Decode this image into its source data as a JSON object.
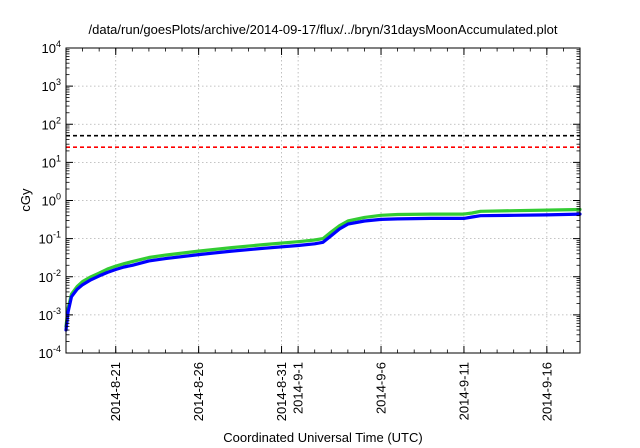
{
  "chart_data": {
    "type": "line",
    "title": "/data/run/goesPlots/archive/2014-09-17/flux/../bryn/31daysMoonAccumulated.plot",
    "xlabel": "Coordinated Universal Time (UTC)",
    "ylabel": "cGy",
    "y_scale": "log",
    "ylim": [
      0.0001,
      10000
    ],
    "xlim": [
      "2014-08-18",
      "2014-09-18"
    ],
    "grid": true,
    "y_ticks": [
      {
        "value": 0.0001,
        "base": "10",
        "exp": "-4"
      },
      {
        "value": 0.001,
        "base": "10",
        "exp": "-3"
      },
      {
        "value": 0.01,
        "base": "10",
        "exp": "-2"
      },
      {
        "value": 0.1,
        "base": "10",
        "exp": "-1"
      },
      {
        "value": 1,
        "base": "10",
        "exp": "0"
      },
      {
        "value": 10,
        "base": "10",
        "exp": "1"
      },
      {
        "value": 100,
        "base": "10",
        "exp": "2"
      },
      {
        "value": 1000,
        "base": "10",
        "exp": "3"
      },
      {
        "value": 10000,
        "base": "10",
        "exp": "4"
      }
    ],
    "x_ticks": [
      {
        "date": "2014-08-21",
        "lines": [
          "2014-8-21"
        ]
      },
      {
        "date": "2014-08-26",
        "lines": [
          "2014-8-26"
        ]
      },
      {
        "date": "2014-08-31",
        "lines": [
          "2014-8-31"
        ]
      },
      {
        "date": "2014-09-01",
        "lines": [
          "2014-9-1"
        ]
      },
      {
        "date": "2014-09-06",
        "lines": [
          "2014-9-6"
        ]
      },
      {
        "date": "2014-09-11",
        "lines": [
          "2014-9-11"
        ]
      },
      {
        "date": "2014-09-16",
        "lines": [
          "2014-9-16"
        ]
      }
    ],
    "reference_lines": [
      {
        "y": 50,
        "color": "#000000",
        "style": "dashed"
      },
      {
        "y": 25,
        "color": "#ff0000",
        "style": "dashed"
      }
    ],
    "series": [
      {
        "color": "#33cc33",
        "x": [
          "2014-08-18T00:00",
          "2014-08-18T03:00",
          "2014-08-18T08:00",
          "2014-08-18T16:00",
          "2014-08-19T00:00",
          "2014-08-19T12:00",
          "2014-08-20T00:00",
          "2014-08-20T12:00",
          "2014-08-21T00:00",
          "2014-08-21T12:00",
          "2014-08-22T00:00",
          "2014-08-23T00:00",
          "2014-08-24T00:00",
          "2014-08-26T00:00",
          "2014-08-28T00:00",
          "2014-08-30T00:00",
          "2014-09-01T00:00",
          "2014-09-02T00:00",
          "2014-09-02T12:00",
          "2014-09-03T00:00",
          "2014-09-03T12:00",
          "2014-09-04T00:00",
          "2014-09-05T00:00",
          "2014-09-06T00:00",
          "2014-09-07T00:00",
          "2014-09-09T00:00",
          "2014-09-11T00:00",
          "2014-09-11T12:00",
          "2014-09-12T00:00",
          "2014-09-14T00:00",
          "2014-09-16T00:00",
          "2014-09-18T00:00"
        ],
        "y": [
          0.0005,
          0.0015,
          0.0035,
          0.0055,
          0.0075,
          0.01,
          0.0125,
          0.016,
          0.019,
          0.022,
          0.025,
          0.032,
          0.037,
          0.047,
          0.058,
          0.07,
          0.083,
          0.092,
          0.1,
          0.15,
          0.22,
          0.29,
          0.36,
          0.41,
          0.43,
          0.44,
          0.44,
          0.47,
          0.52,
          0.54,
          0.56,
          0.58
        ]
      },
      {
        "color": "#0000ff",
        "x": [
          "2014-08-18T00:00",
          "2014-08-18T03:00",
          "2014-08-18T08:00",
          "2014-08-18T16:00",
          "2014-08-19T00:00",
          "2014-08-19T12:00",
          "2014-08-20T00:00",
          "2014-08-20T12:00",
          "2014-08-21T00:00",
          "2014-08-21T12:00",
          "2014-08-22T00:00",
          "2014-08-23T00:00",
          "2014-08-24T00:00",
          "2014-08-26T00:00",
          "2014-08-28T00:00",
          "2014-08-30T00:00",
          "2014-09-01T00:00",
          "2014-09-02T00:00",
          "2014-09-02T12:00",
          "2014-09-03T00:00",
          "2014-09-03T12:00",
          "2014-09-04T00:00",
          "2014-09-05T00:00",
          "2014-09-06T00:00",
          "2014-09-07T00:00",
          "2014-09-09T00:00",
          "2014-09-11T00:00",
          "2014-09-11T12:00",
          "2014-09-12T00:00",
          "2014-09-14T00:00",
          "2014-09-16T00:00",
          "2014-09-18T00:00"
        ],
        "y": [
          0.0004,
          0.0012,
          0.003,
          0.0047,
          0.0062,
          0.0083,
          0.0105,
          0.013,
          0.0155,
          0.018,
          0.02,
          0.026,
          0.03,
          0.038,
          0.047,
          0.056,
          0.066,
          0.073,
          0.08,
          0.12,
          0.18,
          0.24,
          0.29,
          0.32,
          0.33,
          0.34,
          0.34,
          0.37,
          0.4,
          0.41,
          0.42,
          0.44
        ]
      }
    ]
  }
}
